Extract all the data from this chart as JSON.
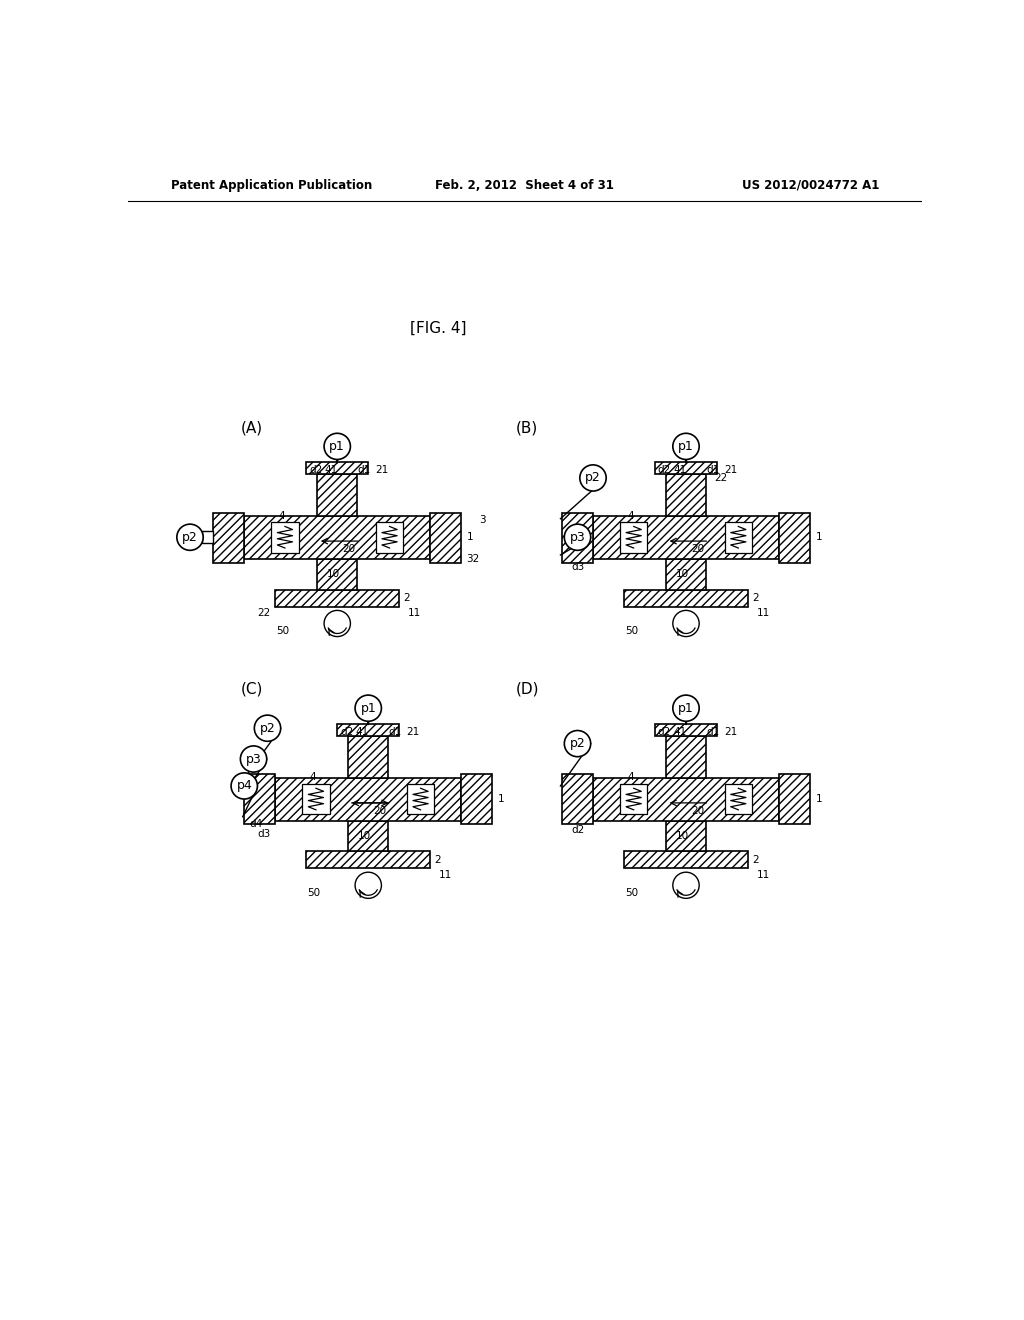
{
  "header_left": "Patent Application Publication",
  "header_center": "Feb. 2, 2012  Sheet 4 of 31",
  "header_right": "US 2012/0024772 A1",
  "fig_label": "[FIG. 4]",
  "background": "#ffffff"
}
